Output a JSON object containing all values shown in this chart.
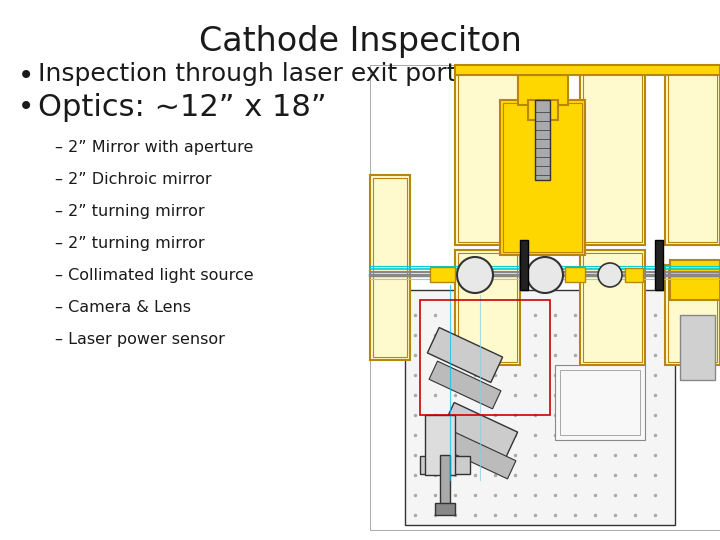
{
  "title": "Cathode Inspeciton",
  "title_fontsize": 24,
  "background_color": "#ffffff",
  "text_color": "#1a1a1a",
  "bullet1": "Inspection through laser exit port",
  "bullet2": "Optics: ~12” x 18”",
  "bullet_fontsize": 18,
  "sub_bullets": [
    "2” Mirror with aperture",
    "2” Dichroic mirror",
    "2” turning mirror",
    "2” turning mirror",
    "Collimated light source",
    "Camera & Lens",
    "Laser power sensor"
  ],
  "sub_bullet_fontsize": 11.5,
  "yellow": "#FFD700",
  "yellow_edge": "#B8860B",
  "gray_bg": "#f2f2f2",
  "dot_color": "#aaaaaa",
  "beam_cyan": "#00BFFF",
  "beam_green": "#90EE90",
  "red_box": "#CC0000",
  "dark": "#333333",
  "mid": "#888888"
}
